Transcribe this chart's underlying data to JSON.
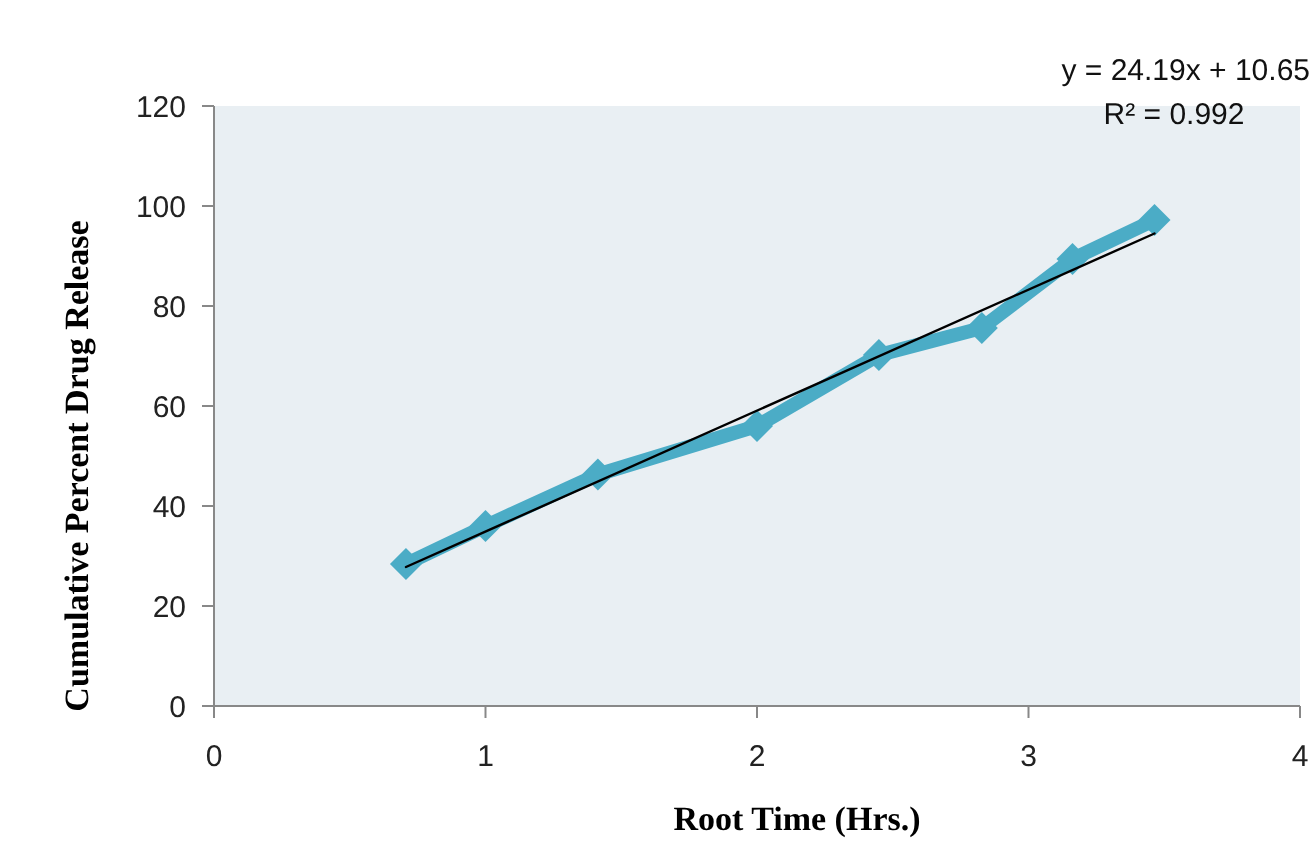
{
  "chart_data": {
    "type": "line",
    "xlabel": "Root Time (Hrs.)",
    "ylabel": "Cumulative Percent Drug Release",
    "xlim": [
      0,
      4
    ],
    "xticks": [
      0,
      1,
      2,
      3,
      4
    ],
    "ylim": [
      0,
      120
    ],
    "yticks": [
      0,
      20,
      40,
      60,
      80,
      100,
      120
    ],
    "grid": false,
    "marker": "diamond",
    "line_style": "solid",
    "annotations": [
      "y = 24.19x + 10.65",
      "R² = 0.992"
    ],
    "series": [
      {
        "color": "#4bacc6",
        "x": [
          0.707,
          1,
          1.414,
          2,
          2.449,
          2.828,
          3.162,
          3.464
        ],
        "values": [
          28.4,
          36,
          46.3,
          56,
          70.2,
          75.6,
          89.4,
          97.2
        ]
      },
      {
        "type": "line",
        "marker": "none",
        "color": "#000000",
        "x": [
          0.707,
          3.464
        ],
        "values": [
          27.8,
          94.5
        ]
      }
    ]
  }
}
